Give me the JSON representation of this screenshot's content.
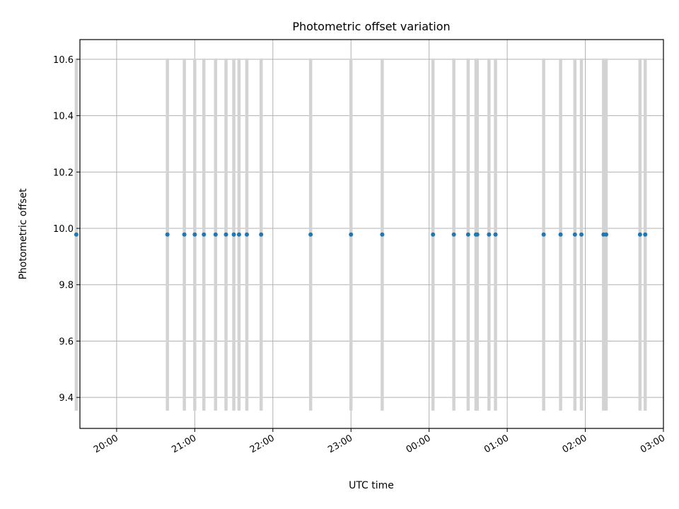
{
  "chart_data": {
    "type": "scatter",
    "title": "Photometric offset variation",
    "xlabel": "UTC time",
    "ylabel": "Photometric offset",
    "x_ticks": [
      "20:00",
      "21:00",
      "22:00",
      "23:00",
      "00:00",
      "01:00",
      "02:00",
      "03:00"
    ],
    "y_ticks": [
      "9.4",
      "9.6",
      "9.8",
      "10.0",
      "10.2",
      "10.4",
      "10.6"
    ],
    "x_range_hours": [
      19.53,
      27.0
    ],
    "ylim": [
      9.29,
      10.67
    ],
    "grid": true,
    "series": [
      {
        "marker_color": "#1f77b4",
        "errorbar_color": "#d3d3d3",
        "points": [
          {
            "x": "19:29",
            "y": 9.978,
            "err_low": 9.353,
            "err_high": 10.603
          },
          {
            "x": "20:39",
            "y": 9.978,
            "err_low": 9.353,
            "err_high": 10.603
          },
          {
            "x": "20:52",
            "y": 9.978,
            "err_low": 9.353,
            "err_high": 10.603
          },
          {
            "x": "21:00",
            "y": 9.978,
            "err_low": 9.353,
            "err_high": 10.603
          },
          {
            "x": "21:07",
            "y": 9.978,
            "err_low": 9.353,
            "err_high": 10.603
          },
          {
            "x": "21:16",
            "y": 9.978,
            "err_low": 9.353,
            "err_high": 10.603
          },
          {
            "x": "21:24",
            "y": 9.978,
            "err_low": 9.353,
            "err_high": 10.603
          },
          {
            "x": "21:30",
            "y": 9.978,
            "err_low": 9.353,
            "err_high": 10.603
          },
          {
            "x": "21:34",
            "y": 9.978,
            "err_low": 9.353,
            "err_high": 10.603
          },
          {
            "x": "21:40",
            "y": 9.978,
            "err_low": 9.353,
            "err_high": 10.603
          },
          {
            "x": "21:51",
            "y": 9.978,
            "err_low": 9.353,
            "err_high": 10.603
          },
          {
            "x": "22:29",
            "y": 9.978,
            "err_low": 9.353,
            "err_high": 10.603
          },
          {
            "x": "23:00",
            "y": 9.978,
            "err_low": 9.353,
            "err_high": 10.603
          },
          {
            "x": "23:24",
            "y": 9.978,
            "err_low": 9.353,
            "err_high": 10.603
          },
          {
            "x": "00:03",
            "y": 9.978,
            "err_low": 9.353,
            "err_high": 10.603
          },
          {
            "x": "00:19",
            "y": 9.978,
            "err_low": 9.353,
            "err_high": 10.603
          },
          {
            "x": "00:30",
            "y": 9.978,
            "err_low": 9.353,
            "err_high": 10.603
          },
          {
            "x": "00:36",
            "y": 9.978,
            "err_low": 9.353,
            "err_high": 10.603
          },
          {
            "x": "00:37",
            "y": 9.978,
            "err_low": 9.353,
            "err_high": 10.603
          },
          {
            "x": "00:46",
            "y": 9.978,
            "err_low": 9.353,
            "err_high": 10.603
          },
          {
            "x": "00:51",
            "y": 9.978,
            "err_low": 9.353,
            "err_high": 10.603
          },
          {
            "x": "01:28",
            "y": 9.978,
            "err_low": 9.353,
            "err_high": 10.603
          },
          {
            "x": "01:41",
            "y": 9.978,
            "err_low": 9.353,
            "err_high": 10.603
          },
          {
            "x": "01:52",
            "y": 9.978,
            "err_low": 9.353,
            "err_high": 10.603
          },
          {
            "x": "01:57",
            "y": 9.978,
            "err_low": 9.353,
            "err_high": 10.603
          },
          {
            "x": "02:14",
            "y": 9.978,
            "err_low": 9.353,
            "err_high": 10.603
          },
          {
            "x": "02:16",
            "y": 9.978,
            "err_low": 9.353,
            "err_high": 10.603
          },
          {
            "x": "02:42",
            "y": 9.978,
            "err_low": 9.353,
            "err_high": 10.603
          },
          {
            "x": "02:46",
            "y": 9.978,
            "err_low": 9.353,
            "err_high": 10.603
          }
        ]
      }
    ]
  }
}
